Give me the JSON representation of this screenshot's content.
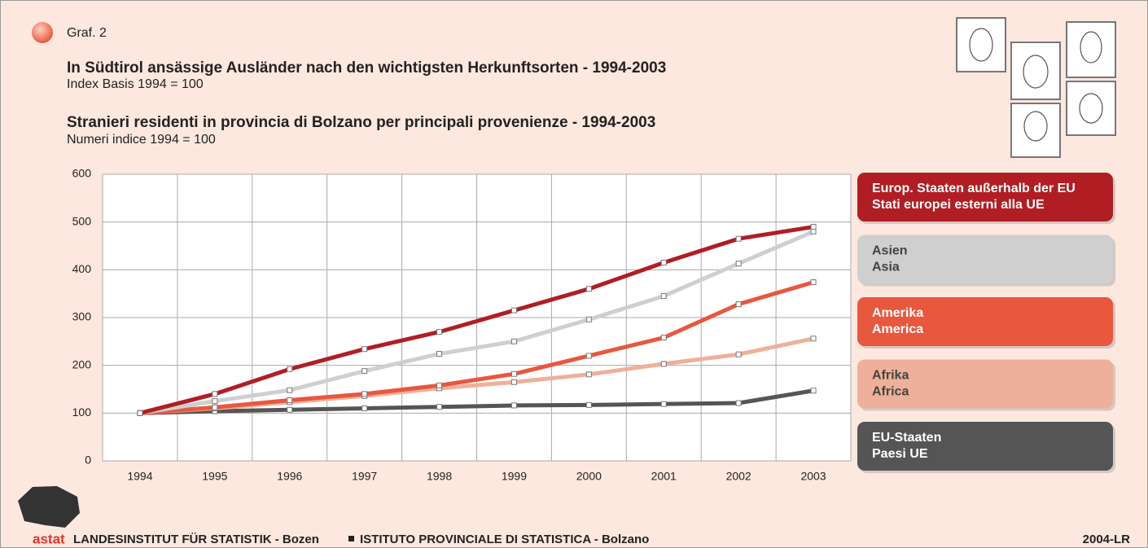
{
  "chart_data": {
    "type": "line",
    "label": "Graf. 2",
    "title": "In Südtirol ansässige Ausländer nach den wichtigsten Herkunftsorten - 1994-2003",
    "subtitle": "Index Basis 1994 = 100",
    "title_it": "Stranieri residenti in provincia di Bolzano per principali provenienze - 1994-2003",
    "subtitle_it": "Numeri indice 1994 = 100",
    "categories": [
      "1994",
      "1995",
      "1996",
      "1997",
      "1998",
      "1999",
      "2000",
      "2001",
      "2002",
      "2003"
    ],
    "series": [
      {
        "name": [
          "Europ. Staaten außerhalb der EU",
          "Stati europei esterni alla UE"
        ],
        "color": "#b01e23",
        "values": [
          100,
          140,
          192,
          234,
          270,
          315,
          360,
          415,
          465,
          490
        ]
      },
      {
        "name": [
          "Asien",
          "Asia"
        ],
        "color": "#cfcfcf",
        "values": [
          100,
          125,
          148,
          188,
          224,
          250,
          296,
          345,
          413,
          480
        ]
      },
      {
        "name": [
          "Amerika",
          "America"
        ],
        "color": "#e8573e",
        "values": [
          100,
          112,
          127,
          140,
          158,
          182,
          220,
          258,
          328,
          374
        ]
      },
      {
        "name": [
          "Afrika",
          "Africa"
        ],
        "color": "#eeb09a",
        "values": [
          100,
          110,
          123,
          136,
          152,
          165,
          181,
          203,
          223,
          256
        ]
      },
      {
        "name": [
          "EU-Staaten",
          "Paesi UE"
        ],
        "color": "#555555",
        "values": [
          100,
          104,
          107,
          110,
          113,
          116,
          117,
          119,
          121,
          147
        ]
      }
    ],
    "ylim": [
      0,
      600
    ],
    "yticks": [
      0,
      100,
      200,
      300,
      400,
      500,
      600
    ],
    "grid": true,
    "footer": {
      "logo": "astat",
      "left": "LANDESINSTITUT FÜR STATISTIK - Bozen",
      "right": "ISTITUTO PROVINCIALE DI STATISTICA - Bolzano",
      "code": "2004-LR"
    }
  }
}
